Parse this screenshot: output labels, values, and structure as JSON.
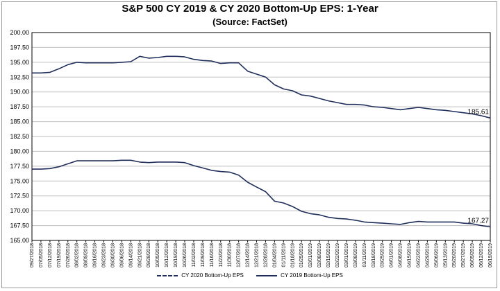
{
  "title": "S&P 500 CY 2019 & CY 2020 Bottom-Up EPS: 1-Year",
  "subtitle": "(Source: FactSet)",
  "colors": {
    "line": "#1f2d5a",
    "grid": "#bfbfbf",
    "axis": "#000000"
  },
  "chart_data": {
    "type": "line",
    "title": "S&P 500 CY 2019 & CY 2020 Bottom-Up EPS: 1-Year",
    "subtitle": "(Source: FactSet)",
    "xlabel": "",
    "ylabel": "",
    "ylim": [
      165.0,
      200.0
    ],
    "yticks": [
      "165.00",
      "167.50",
      "170.00",
      "172.50",
      "175.00",
      "177.50",
      "180.00",
      "182.50",
      "185.00",
      "187.50",
      "190.00",
      "192.50",
      "195.00",
      "197.50",
      "200.00"
    ],
    "grid": "horizontal",
    "legend_position": "bottom",
    "x_tick_labels": [
      "09/27/2018",
      "07/05/2018",
      "07/12/2018",
      "07/19/2018",
      "07/26/2018",
      "08/02/2018",
      "08/09/2018",
      "08/16/2018",
      "08/23/2018",
      "08/30/2018",
      "09/06/2018",
      "09/13/2018",
      "09/20/2018",
      "09/27/2018",
      "10/04/2018",
      "10/11/2018",
      "10/18/2018",
      "10/25/2018",
      "11/01/2018",
      "11/08/2018",
      "11/15/2018",
      "11/22/2018",
      "11/29/2018",
      "12/06/2018",
      "12/13/2018",
      "12/20/2018",
      "12/27/2018",
      "01/03/2019",
      "01/10/2019",
      "01/17/2019",
      "01/24/2019",
      "01/31/2019",
      "02/07/2019",
      "02/14/2019",
      "02/21/2019",
      "02/28/2019",
      "03/07/2019",
      "03/14/2019",
      "03/21/2019",
      "03/28/2019",
      "04/04/2019",
      "04/11/2019",
      "04/18/2019",
      "04/25/2019",
      "05/02/2019",
      "05/09/2019",
      "05/16/2019",
      "05/23/2019",
      "05/30/2019",
      "06/06/2019",
      "06/13/2019",
      "06/20/2019"
    ],
    "x_tick_text": [
      "09/27/2018",
      "07/05/2018",
      "07/12/2018",
      "07/19/2018",
      "07/26/2018",
      "08/02/2018",
      "08/09/2018",
      "09/16/2018",
      "09/23/2018",
      "09/30/2018",
      "09/06/2018",
      "09/14/2018",
      "09/21/2018",
      "09/28/2018",
      "10/05/2018",
      "10/12/2018",
      "10/19/2018",
      "10/26/2018",
      "11/02/2018",
      "11/09/2018",
      "11/16/2018",
      "11/23/2018",
      "11/30/2018",
      "12/07/2018",
      "12/14/2018",
      "12/21/2018",
      "12/28/2018",
      "01/04/2019",
      "01/11/2019",
      "01/18/2019",
      "01/25/2019",
      "02/01/2019",
      "02/08/2019",
      "02/15/2019",
      "02/22/2019",
      "03/01/2019",
      "03/08/2019",
      "03/11/2019",
      "03/18/2019",
      "03/25/2019",
      "04/01/2019",
      "04/08/2019",
      "04/15/2019",
      "04/22/2019",
      "04/29/2019",
      "05/06/2019",
      "05/13/2019",
      "05/20/2019",
      "05/27/2019",
      "06/05/2019",
      "06/12/2019",
      "06/19/2019"
    ],
    "series": [
      {
        "name": "CY 2020 Bottom-Up EPS",
        "style": "dashed",
        "end_label": "185.61",
        "values": [
          193.2,
          193.2,
          193.3,
          193.9,
          194.6,
          195.0,
          194.9,
          194.9,
          194.9,
          194.9,
          195.0,
          195.1,
          196.0,
          195.7,
          195.8,
          196.0,
          196.0,
          195.9,
          195.5,
          195.3,
          195.2,
          194.8,
          194.9,
          194.9,
          193.5,
          193.0,
          192.5,
          191.2,
          190.5,
          190.2,
          189.5,
          189.3,
          188.9,
          188.5,
          188.2,
          187.9,
          187.9,
          187.8,
          187.5,
          187.4,
          187.2,
          187.0,
          187.2,
          187.4,
          187.2,
          187.0,
          186.9,
          186.7,
          186.5,
          186.3,
          186.0,
          185.61
        ]
      },
      {
        "name": "CY 2019 Bottom-Up EPS",
        "style": "solid",
        "end_label": "167.27",
        "values": [
          177.0,
          177.0,
          177.1,
          177.4,
          177.9,
          178.4,
          178.4,
          178.4,
          178.4,
          178.4,
          178.5,
          178.5,
          178.2,
          178.1,
          178.2,
          178.2,
          178.2,
          178.1,
          177.6,
          177.2,
          176.8,
          176.6,
          176.5,
          176.0,
          174.8,
          174.0,
          173.2,
          171.6,
          171.3,
          170.7,
          169.9,
          169.5,
          169.3,
          168.9,
          168.7,
          168.6,
          168.4,
          168.1,
          168.0,
          167.9,
          167.8,
          167.7,
          168.0,
          168.2,
          168.1,
          168.1,
          168.1,
          168.1,
          167.9,
          167.8,
          167.5,
          167.27
        ]
      }
    ]
  }
}
